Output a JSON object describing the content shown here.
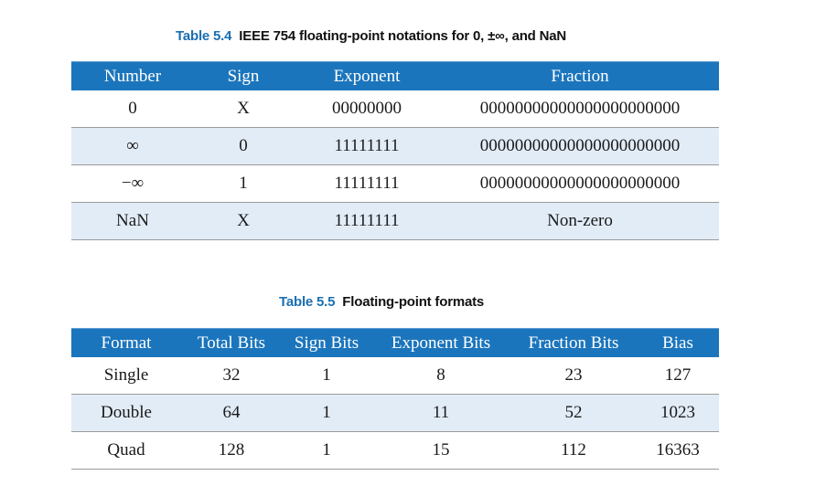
{
  "table1": {
    "caption_number": "Table 5.4",
    "caption_title": "IEEE 754 floating-point notations for 0, ±∞, and NaN",
    "headers": [
      "Number",
      "Sign",
      "Exponent",
      "Fraction"
    ],
    "rows": [
      [
        "0",
        "X",
        "00000000",
        "00000000000000000000000"
      ],
      [
        "∞",
        "0",
        "11111111",
        "00000000000000000000000"
      ],
      [
        "−∞",
        "1",
        "11111111",
        "00000000000000000000000"
      ],
      [
        "NaN",
        "X",
        "11111111",
        "Non-zero"
      ]
    ]
  },
  "table2": {
    "caption_number": "Table 5.5",
    "caption_title": "Floating-point formats",
    "headers": [
      "Format",
      "Total Bits",
      "Sign Bits",
      "Exponent Bits",
      "Fraction Bits",
      "Bias"
    ],
    "rows": [
      [
        "Single",
        "32",
        "1",
        "8",
        "23",
        "127"
      ],
      [
        "Double",
        "64",
        "1",
        "11",
        "52",
        "1023"
      ],
      [
        "Quad",
        "128",
        "1",
        "15",
        "112",
        "16363"
      ]
    ]
  },
  "colors": {
    "header_bg": "#1b75bc",
    "caption_number": "#1a6fb0",
    "alt_row_bg": "#e2ecf7"
  }
}
